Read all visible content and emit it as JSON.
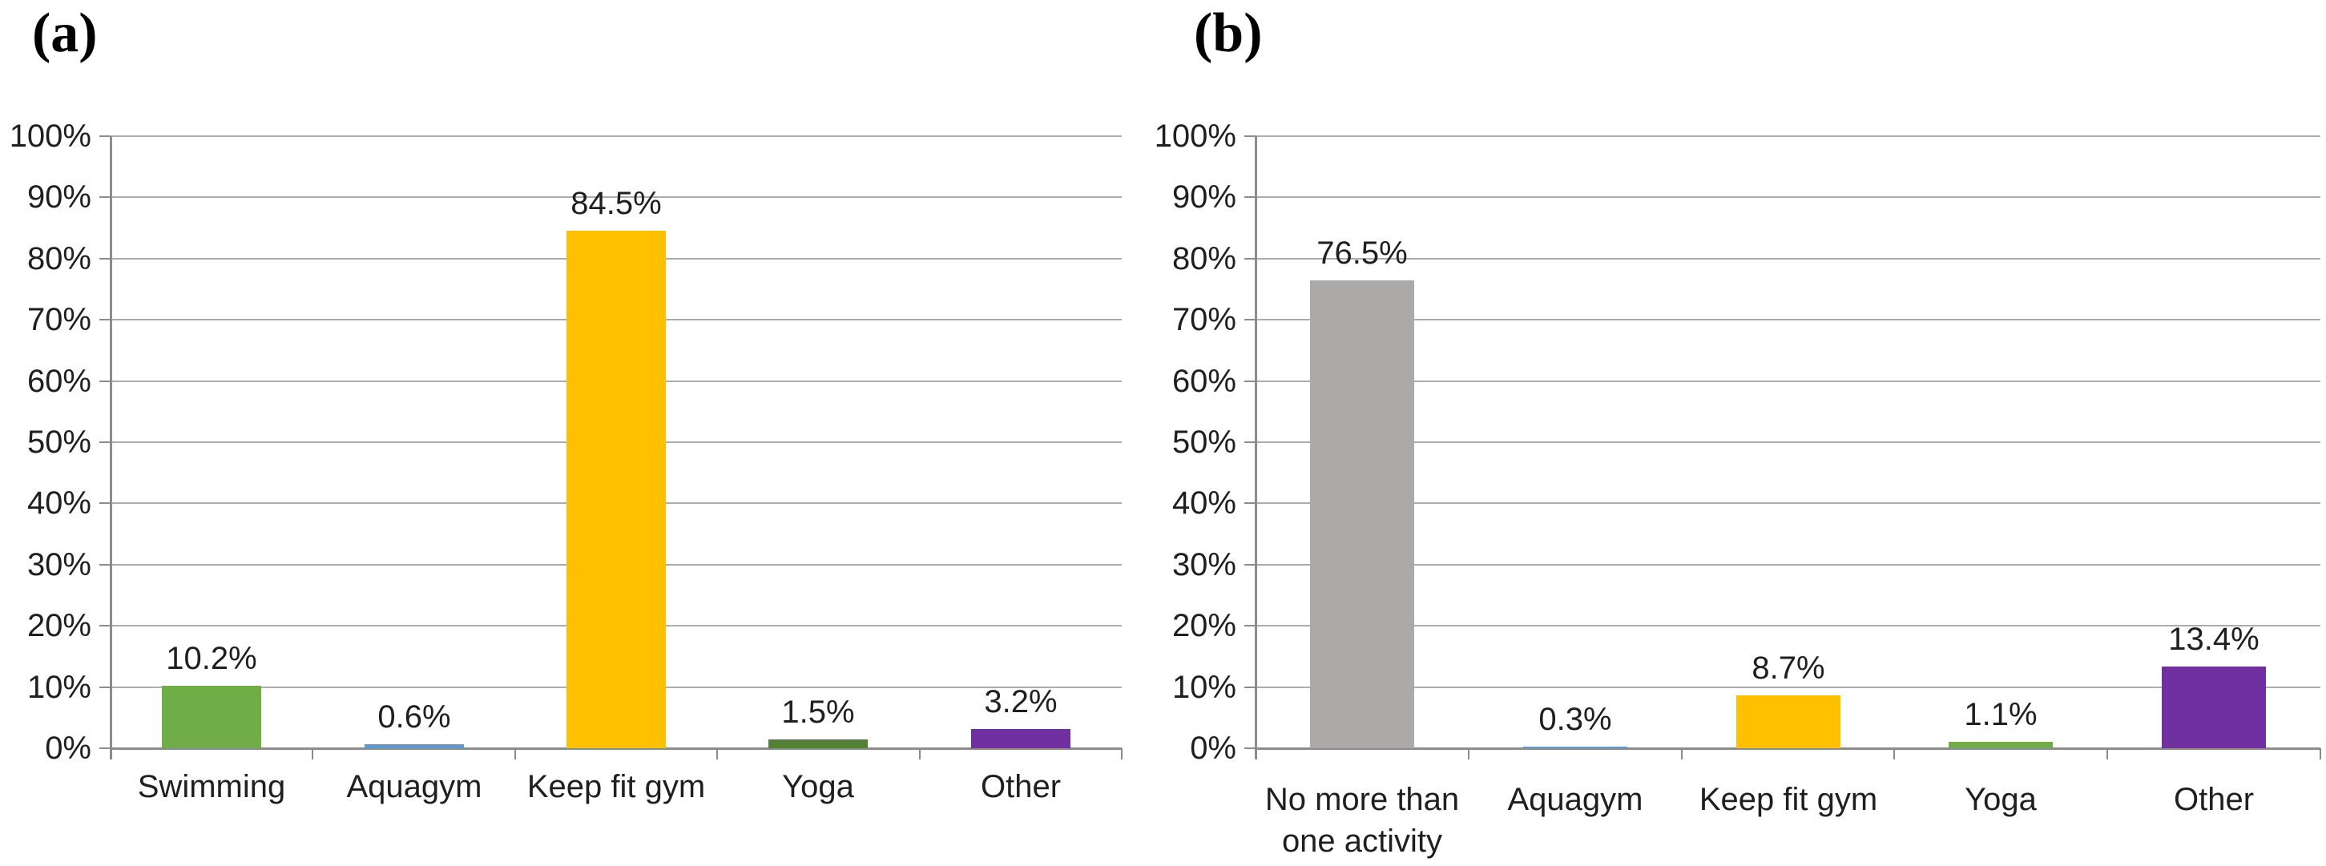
{
  "colors": {
    "grid": "#ACACAC",
    "axis": "#8C8C8C",
    "text": "#1F1F1F",
    "panel_label_color": "#000000",
    "background": "#FFFFFF",
    "series_green": "#70AD47",
    "series_blue": "#5B9BD5",
    "series_yellow": "#FFC000",
    "series_dark_green": "#548235",
    "series_purple": "#7030A0",
    "series_gray": "#ACA9A9"
  },
  "chart_data": [
    {
      "type": "bar",
      "panel_label": "(a)",
      "title": "",
      "xlabel": "",
      "ylabel": "",
      "ylim": [
        0,
        100
      ],
      "ytick_step": 10,
      "ytick_labels": [
        "0%",
        "10%",
        "20%",
        "30%",
        "40%",
        "50%",
        "60%",
        "70%",
        "80%",
        "90%",
        "100%"
      ],
      "grid": true,
      "legend": "none",
      "categories": [
        "Swimming",
        "Aquagym",
        "Keep fit gym",
        "Yoga",
        "Other"
      ],
      "category_label_lines": [
        [
          "Swimming"
        ],
        [
          "Aquagym"
        ],
        [
          "Keep fit gym"
        ],
        [
          "Yoga"
        ],
        [
          "Other"
        ]
      ],
      "values": [
        10.2,
        0.6,
        84.5,
        1.5,
        3.2
      ],
      "value_labels": [
        "10.2%",
        "0.6%",
        "84.5%",
        "1.5%",
        "3.2%"
      ],
      "bar_colors": [
        "#70AD47",
        "#5B9BD5",
        "#FFC000",
        "#548235",
        "#7030A0"
      ]
    },
    {
      "type": "bar",
      "panel_label": "(b)",
      "title": "",
      "xlabel": "",
      "ylabel": "",
      "ylim": [
        0,
        100
      ],
      "ytick_step": 10,
      "ytick_labels": [
        "0%",
        "10%",
        "20%",
        "30%",
        "40%",
        "50%",
        "60%",
        "70%",
        "80%",
        "90%",
        "100%"
      ],
      "grid": true,
      "legend": "none",
      "categories": [
        "No more than one activity",
        "Aquagym",
        "Keep fit gym",
        "Yoga",
        "Other"
      ],
      "category_label_lines": [
        [
          "No more than",
          "one activity"
        ],
        [
          "Aquagym"
        ],
        [
          "Keep fit gym"
        ],
        [
          "Yoga"
        ],
        [
          "Other"
        ]
      ],
      "values": [
        76.5,
        0.3,
        8.7,
        1.1,
        13.4
      ],
      "value_labels": [
        "76.5%",
        "0.3%",
        "8.7%",
        "1.1%",
        "13.4%"
      ],
      "bar_colors": [
        "#ACA9A9",
        "#5B9BD5",
        "#FFC000",
        "#70AD47",
        "#7030A0"
      ]
    }
  ]
}
